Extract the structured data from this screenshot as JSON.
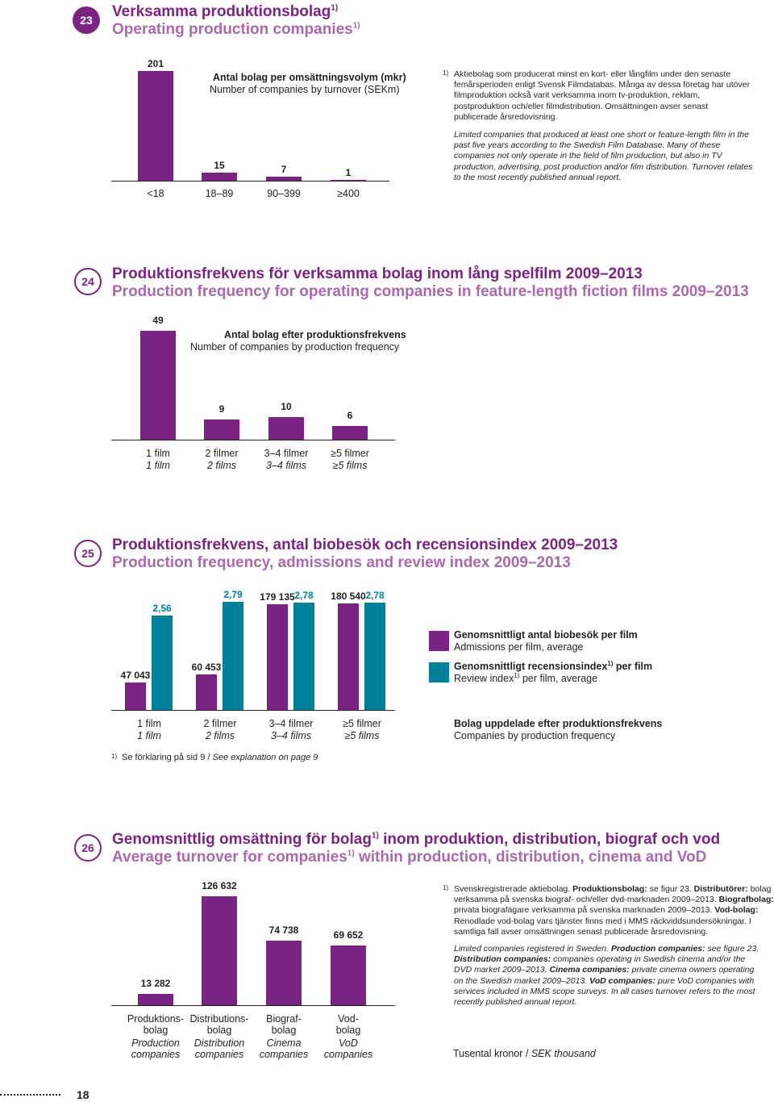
{
  "sections": {
    "s23": {
      "num": "23",
      "title_sv": "Verksamma produktionsbolag",
      "title_en": "Operating production companies",
      "title_sup": "1)",
      "legend_sv": "Antal bolag per omsättningsvolym (mkr)",
      "legend_en": "Number of companies by turnover (SEKm)",
      "note_mark": "1)",
      "note_sv": "Aktiebolag som producerat minst en kort- eller långfilm under den senaste femårsperioden enligt Svensk Filmdatabas. Många av dessa företag har utöver filmproduktion också varit verksamma inom tv-produktion, reklam, postproduktion och/eller filmdistribution. Omsättningen avser senast publicerade årsredovisning.",
      "note_en": "Limited companies that produced at least one short or feature-length film in the past five years according to the Swedish Film Database. Many of these companies not only operate in the field of film production, but also in TV production, advertising, post production and/or film distribution. Turnover relates to the most recently published annual report."
    },
    "s24": {
      "num": "24",
      "title_sv": "Produktionsfrekvens för verksamma bolag inom lång spelfilm 2009–2013",
      "title_en": "Production frequency for operating companies in feature-length fiction films 2009–2013",
      "legend_sv": "Antal bolag efter produktionsfrekvens",
      "legend_en": "Number of companies by production frequency"
    },
    "s25": {
      "num": "25",
      "title_sv": "Produktionsfrekvens, antal biobesök och recensionsindex 2009–2013",
      "title_en": "Production frequency, admissions and review index 2009–2013",
      "legend1_sv": "Genomsnittligt antal biobesök per film",
      "legend1_en": "Admissions per film, average",
      "legend2_sv_a": "Genomsnittligt recensionsindex",
      "legend2_sv_sup": "1)",
      "legend2_sv_b": " per film",
      "legend2_en_a": "Review index",
      "legend2_en_sup": "1)",
      "legend2_en_b": " per film, average",
      "legend3_sv": "Bolag uppdelade efter produktionsfrekvens",
      "legend3_en": "Companies by production frequency",
      "footnote_mark": "1)",
      "footnote_sv": "Se förklaring på sid 9 / ",
      "footnote_en": "See explanation on page 9"
    },
    "s26": {
      "num": "26",
      "title_sv_a": "Genomsnittlig omsättning för bolag",
      "title_sv_sup": "1)",
      "title_sv_b": " inom produktion, distribution, biograf och vod",
      "title_en_a": "Average turnover for companies",
      "title_en_sup": "1)",
      "title_en_b": " within production, distribution, cinema and VoD",
      "note_mark": "1)",
      "note_sv_1": "Svenskregistrerade aktiebolag. ",
      "note_sv_b1": "Produktionsbolag:",
      "note_sv_2": " se figur 23. ",
      "note_sv_b2": "Distributörer:",
      "note_sv_3": " bolag verksamma på svenska biograf- och/eller dvd-marknaden 2009–2013. ",
      "note_sv_b3": "Biografbolag:",
      "note_sv_4": " privata biografägare verksamma på svenska marknaden 2009–2013. ",
      "note_sv_b4": "Vod-bolag:",
      "note_sv_5": " Renodlade vod-bolag vars tjänster finns med i MMS räckviddsundersökningar. I samtliga fall avser omsättningen senast publicerade årsredovisning.",
      "note_en_1": "Limited companies registered in Sweden. ",
      "note_en_b1": "Production companies:",
      "note_en_2": " see figure 23. ",
      "note_en_b2": "Distribution companies:",
      "note_en_3": " companies operating in Swedish cinema and/or the DVD market 2009–2013. ",
      "note_en_b3": "Cinema companies:",
      "note_en_4": " private cinema owners operating on the Swedish market 2009–2013. ",
      "note_en_b4": "VoD companies:",
      "note_en_5": " pure VoD companies with services included in MMS scope surveys. In all cases turnover refers to the most recently published annual report.",
      "unit_sv": "Tusental kronor / ",
      "unit_en": "SEK thousand"
    }
  },
  "page_number": "18",
  "colors": {
    "purple": "#7b2382",
    "teal": "#00819a",
    "light_purple": "#a969ad"
  },
  "chart_data": [
    {
      "id": "fig23",
      "type": "bar",
      "title": "Verksamma produktionsbolag / Operating production companies",
      "categories": [
        "<18",
        "18–89",
        "90–399",
        "≥400"
      ],
      "values": [
        201,
        15,
        7,
        1
      ],
      "value_labels": [
        "201",
        "15",
        "7",
        "1"
      ],
      "ylabel": "Antal bolag per omsättningsvolym (mkr) / Number of companies by turnover (SEKm)",
      "ylim": [
        0,
        201
      ]
    },
    {
      "id": "fig24",
      "type": "bar",
      "title": "Produktionsfrekvens för verksamma bolag inom lång spelfilm 2009–2013",
      "categories": [
        "1 film",
        "2 filmer",
        "3–4 filmer",
        "≥5 filmer"
      ],
      "categories_en": [
        "1 film",
        "2 films",
        "3–4 films",
        "≥5 films"
      ],
      "values": [
        49,
        9,
        10,
        6
      ],
      "value_labels": [
        "49",
        "9",
        "10",
        "6"
      ],
      "ylabel": "Antal bolag efter produktionsfrekvens / Number of companies by production frequency",
      "ylim": [
        0,
        49
      ]
    },
    {
      "id": "fig25",
      "type": "bar",
      "title": "Produktionsfrekvens, antal biobesök och recensionsindex 2009–2013",
      "categories": [
        "1 film",
        "2 filmer",
        "3–4 filmer",
        "≥5 filmer"
      ],
      "categories_en": [
        "1 film",
        "2 films",
        "3–4 films",
        "≥5 films"
      ],
      "series": [
        {
          "name": "Genomsnittligt antal biobesök per film",
          "values": [
            47043,
            60453,
            179135,
            180540
          ],
          "labels": [
            "47 043",
            "60 453",
            "179 135",
            "180 540"
          ],
          "ylim": [
            0,
            183000
          ]
        },
        {
          "name": "Genomsnittligt recensionsindex per film",
          "values": [
            2.56,
            2.79,
            2.78,
            2.78
          ],
          "labels": [
            "2,56",
            "2,79",
            "2,78",
            "2,78"
          ],
          "ylim": [
            1.0,
            2.79
          ]
        }
      ]
    },
    {
      "id": "fig26",
      "type": "bar",
      "title": "Genomsnittlig omsättning för bolag inom produktion, distribution, biograf och vod",
      "categories": [
        "Produktions-bolag",
        "Distributions-bolag",
        "Biograf-bolag",
        "Vod-bolag"
      ],
      "categories_en": [
        "Production companies",
        "Distribution companies",
        "Cinema companies",
        "VoD companies"
      ],
      "values": [
        13282,
        126632,
        74738,
        69652
      ],
      "value_labels": [
        "13 282",
        "126 632",
        "74 738",
        "69 652"
      ],
      "ylabel": "Tusental kronor / SEK thousand",
      "ylim": [
        0,
        126632
      ]
    }
  ]
}
